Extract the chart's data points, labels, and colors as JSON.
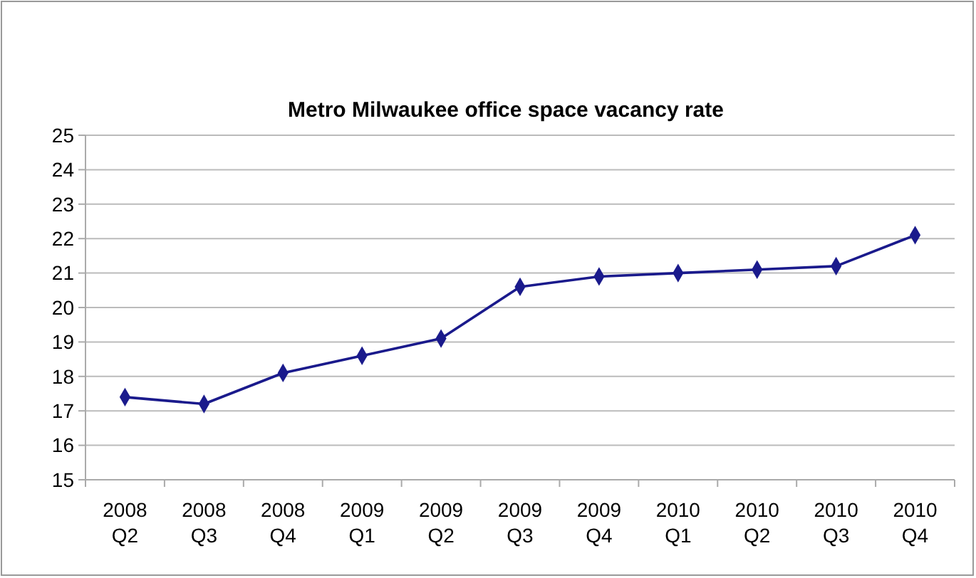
{
  "chart_data": {
    "type": "line",
    "title": "Metro Milwaukee office space vacancy rate",
    "categories": [
      "2008 Q2",
      "2008 Q3",
      "2008 Q4",
      "2009 Q1",
      "2009 Q2",
      "2009 Q3",
      "2009 Q4",
      "2010 Q1",
      "2010 Q2",
      "2010 Q3",
      "2010 Q4"
    ],
    "series": [
      {
        "color": "#1a1a8c",
        "values": [
          17.4,
          17.2,
          18.1,
          18.6,
          19.1,
          20.6,
          20.9,
          21.0,
          21.1,
          21.2,
          22.1
        ]
      }
    ],
    "ylim": [
      15,
      25
    ],
    "yticks": [
      15,
      16,
      17,
      18,
      19,
      20,
      21,
      22,
      23,
      24,
      25
    ],
    "grid": "y",
    "marker": "diamond",
    "line_style": "solid"
  }
}
